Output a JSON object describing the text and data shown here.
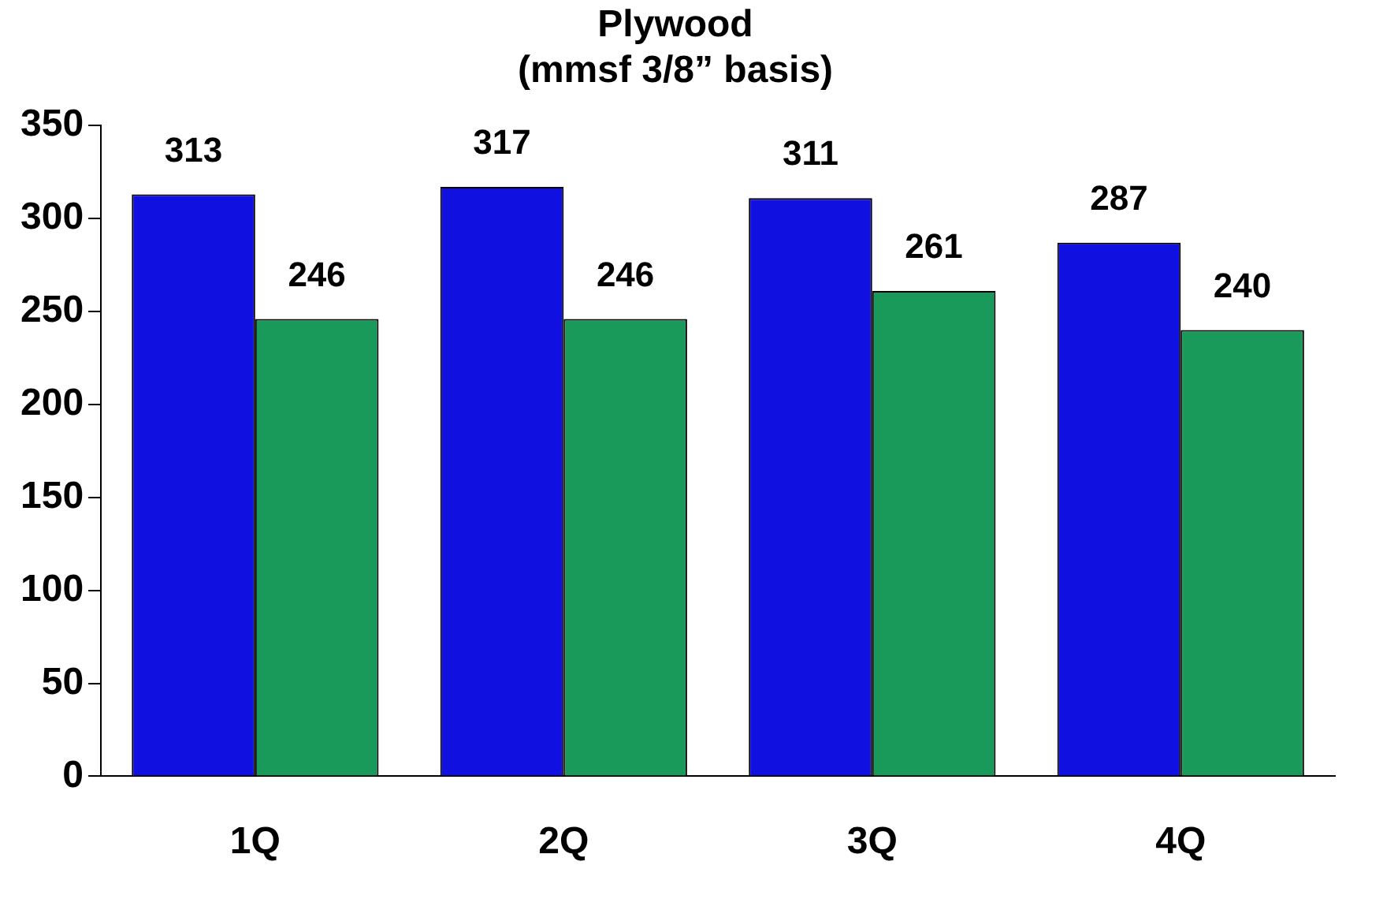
{
  "chart_data": {
    "type": "bar",
    "title": "Plywood\n(mmsf 3/8” basis)",
    "categories": [
      "1Q",
      "2Q",
      "3Q",
      "4Q"
    ],
    "series": [
      {
        "color": "#1010e0",
        "values": [
          313,
          317,
          311,
          287
        ]
      },
      {
        "color": "#1a9a5a",
        "values": [
          246,
          246,
          261,
          240
        ]
      }
    ],
    "ylim": [
      0,
      350
    ],
    "yticks": [
      0,
      50,
      100,
      150,
      200,
      250,
      300,
      350
    ],
    "grid": false,
    "legend": false,
    "data_labels": true
  }
}
